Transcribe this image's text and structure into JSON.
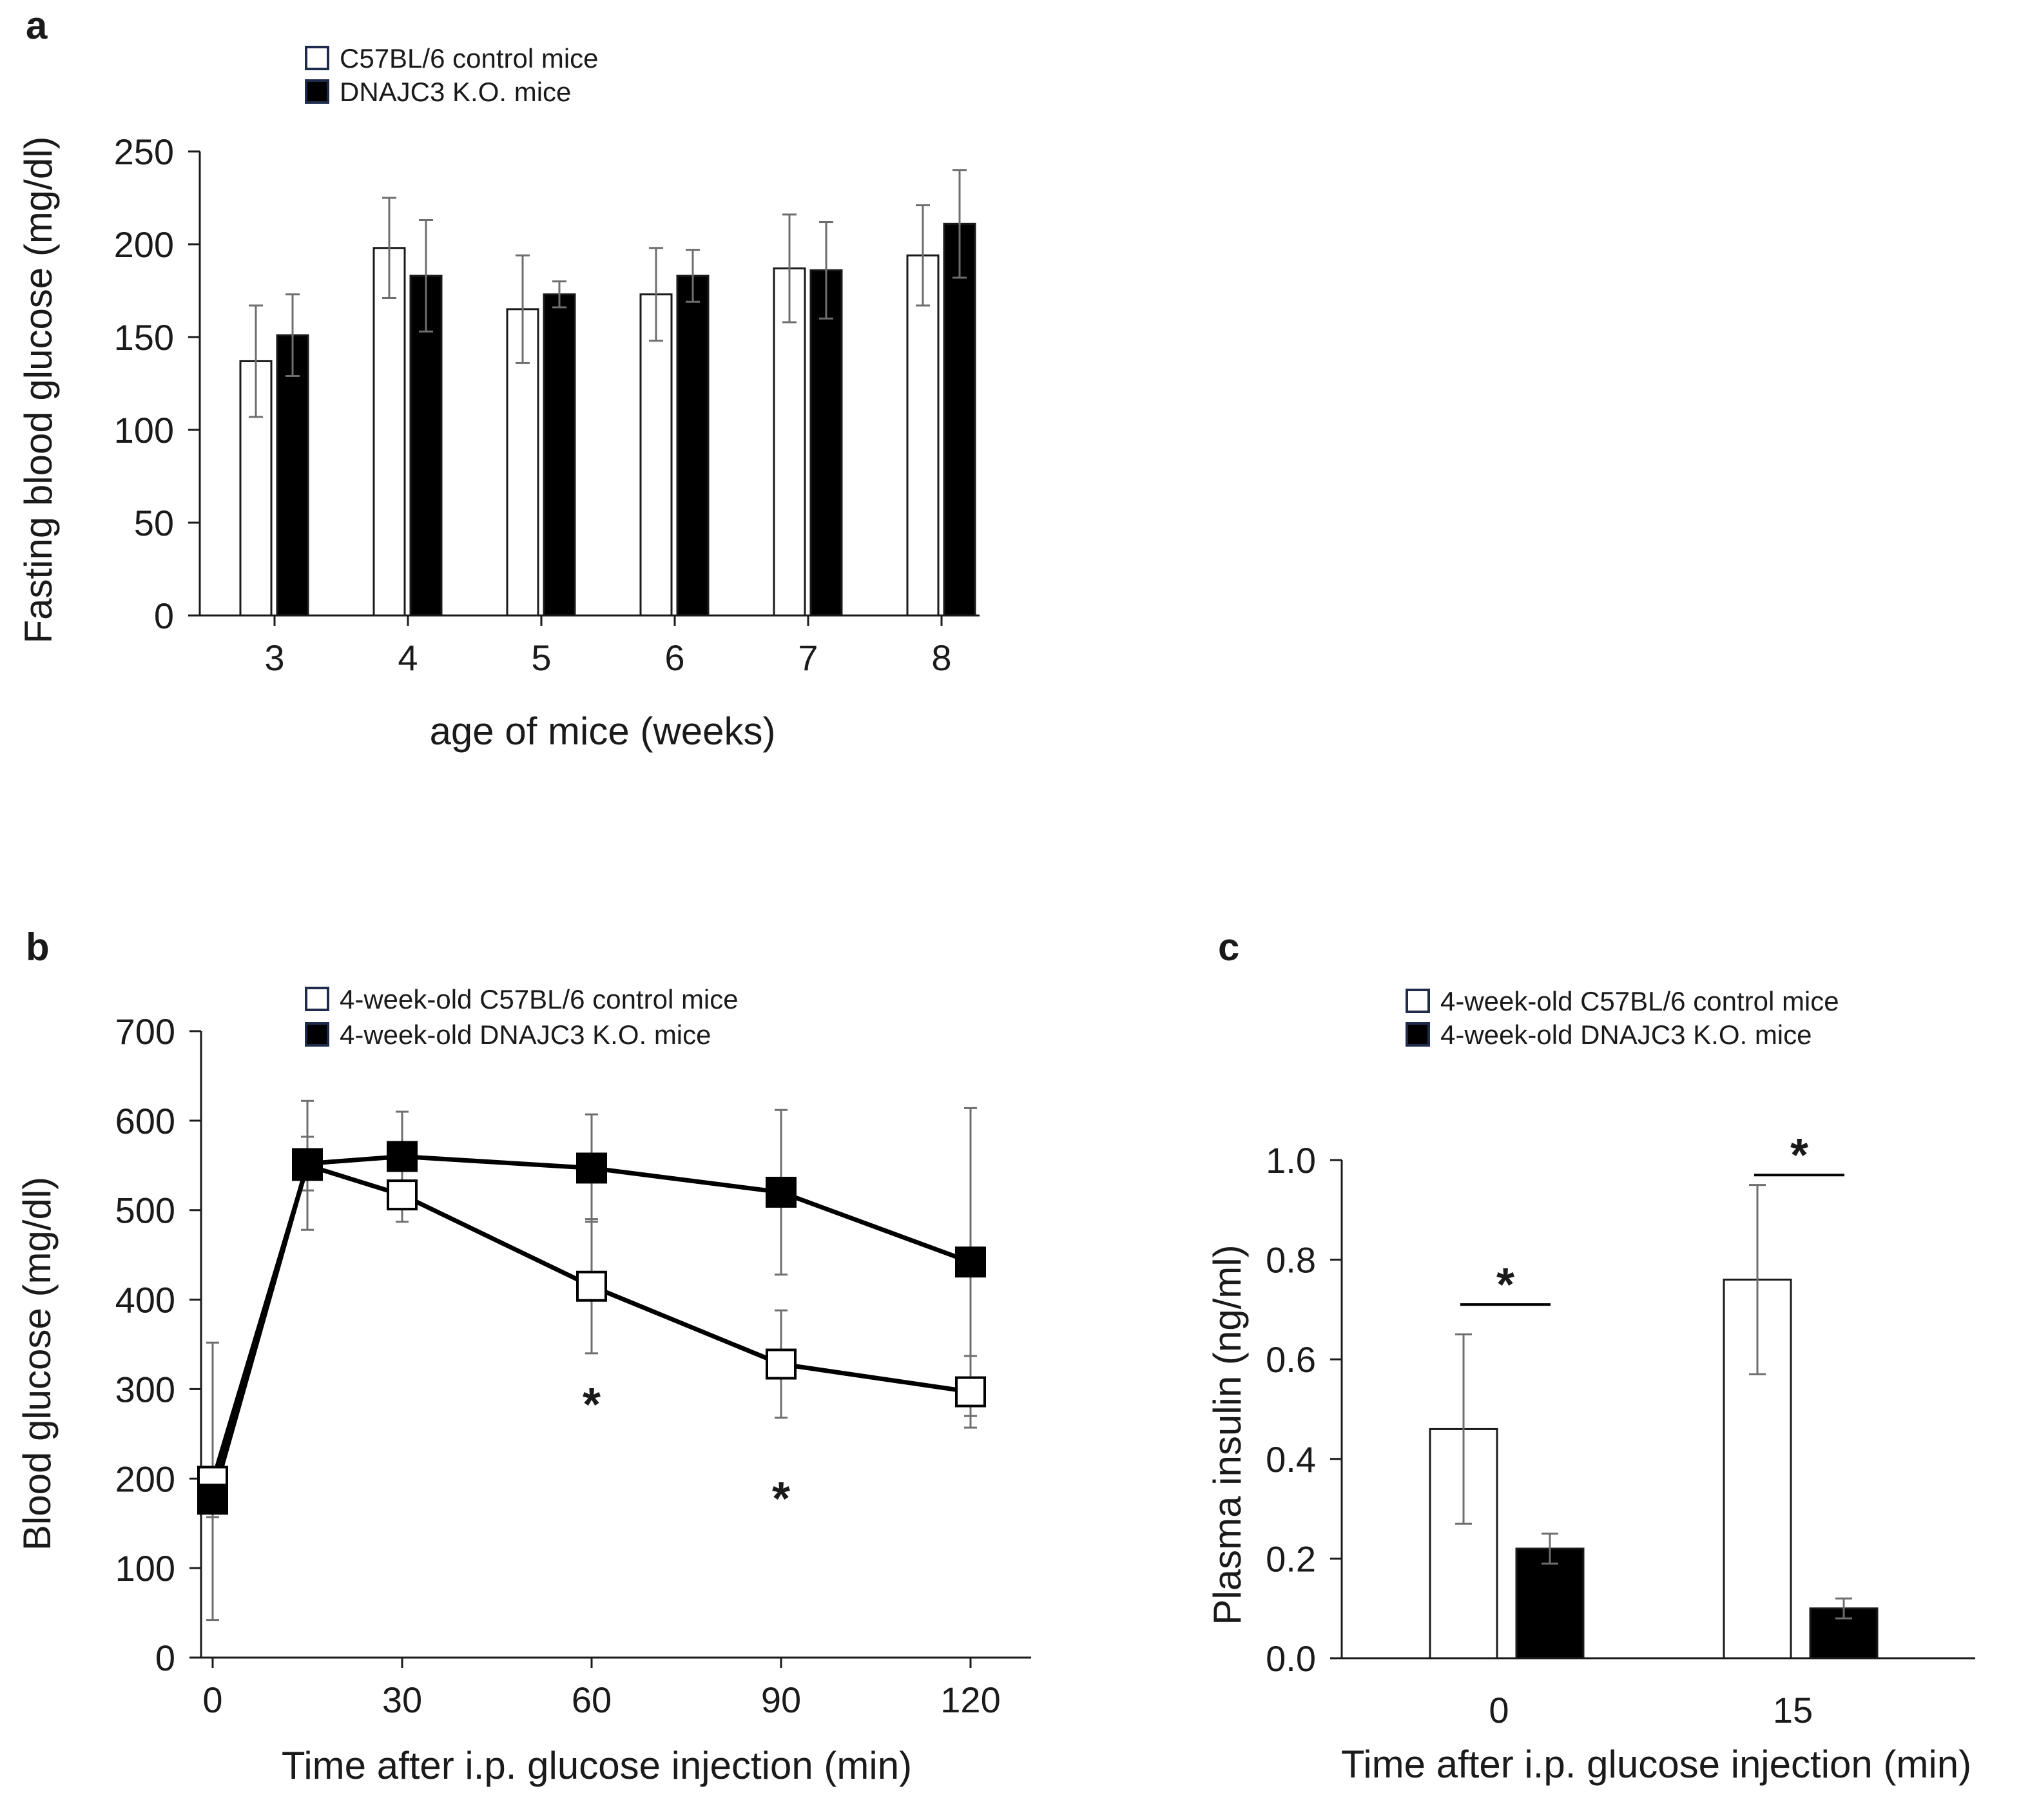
{
  "figure": {
    "panels": [
      {
        "id": "a"
      },
      {
        "id": "b"
      },
      {
        "id": "c"
      }
    ]
  },
  "chart_data": [
    {
      "panel": "a",
      "type": "bar",
      "title": "",
      "xlabel": "age of mice (weeks)",
      "ylabel": "Fasting blood glucose (mg/dl)",
      "ylim": [
        0,
        250
      ],
      "yticks": [
        0,
        50,
        100,
        150,
        200,
        250
      ],
      "categories": [
        "3",
        "4",
        "5",
        "6",
        "7",
        "8"
      ],
      "series": [
        {
          "name": "C57BL/6 control mice",
          "fill": "#ffffff",
          "values": [
            137,
            198,
            165,
            173,
            187,
            194
          ],
          "errors": [
            30,
            27,
            29,
            25,
            29,
            27
          ]
        },
        {
          "name": "DNAJC3 K.O. mice",
          "fill": "#000000",
          "values": [
            151,
            183,
            173,
            183,
            186,
            211
          ],
          "errors": [
            22,
            30,
            7,
            14,
            26,
            29
          ]
        }
      ],
      "legend": "top-left"
    },
    {
      "panel": "b",
      "type": "line",
      "title": "",
      "xlabel": "Time after i.p. glucose injection (min)",
      "ylabel": "Blood glucose (mg/dl)",
      "xlim": [
        0,
        130
      ],
      "ylim": [
        0,
        700
      ],
      "xticks": [
        0,
        30,
        60,
        90,
        120
      ],
      "yticks": [
        0,
        100,
        200,
        300,
        400,
        500,
        600,
        700
      ],
      "series": [
        {
          "name": "4-week-old C57BL/6 control mice",
          "marker": "open-square",
          "x": [
            0,
            15,
            30,
            60,
            90,
            120
          ],
          "y": [
            197,
            550,
            517,
            415,
            328,
            297
          ],
          "errors": [
            155,
            72,
            30,
            75,
            60,
            40
          ]
        },
        {
          "name": "4-week-old DNAJC3 K.O. mice",
          "marker": "filled-square",
          "x": [
            0,
            15,
            30,
            60,
            90,
            120
          ],
          "y": [
            177,
            552,
            560,
            547,
            520,
            442
          ],
          "errors": [
            20,
            30,
            50,
            60,
            92,
            172
          ]
        }
      ],
      "annotations": [
        {
          "text": "*",
          "x": 60,
          "y": 283
        },
        {
          "text": "*",
          "x": 90,
          "y": 178
        }
      ],
      "legend": "top-center"
    },
    {
      "panel": "c",
      "type": "bar",
      "title": "",
      "xlabel": "Time after i.p. glucose injection (min)",
      "ylabel": "Plasma insulin (ng/ml)",
      "ylim": [
        0,
        1.0
      ],
      "yticks": [
        "0.0",
        "0.2",
        "0.4",
        "0.6",
        "0.8",
        "1.0"
      ],
      "categories": [
        "0",
        "15"
      ],
      "series": [
        {
          "name": "4-week-old C57BL/6 control mice",
          "fill": "#ffffff",
          "values": [
            0.46,
            0.76
          ],
          "errors": [
            0.19,
            0.19
          ]
        },
        {
          "name": "4-week-old DNAJC3 K.O. mice",
          "fill": "#000000",
          "values": [
            0.22,
            0.1
          ],
          "errors": [
            0.03,
            0.02
          ]
        }
      ],
      "annotations": [
        {
          "text": "*",
          "category": "0",
          "y": 0.71
        },
        {
          "text": "*",
          "category": "15",
          "y": 0.97
        }
      ],
      "legend": "top-center"
    }
  ]
}
